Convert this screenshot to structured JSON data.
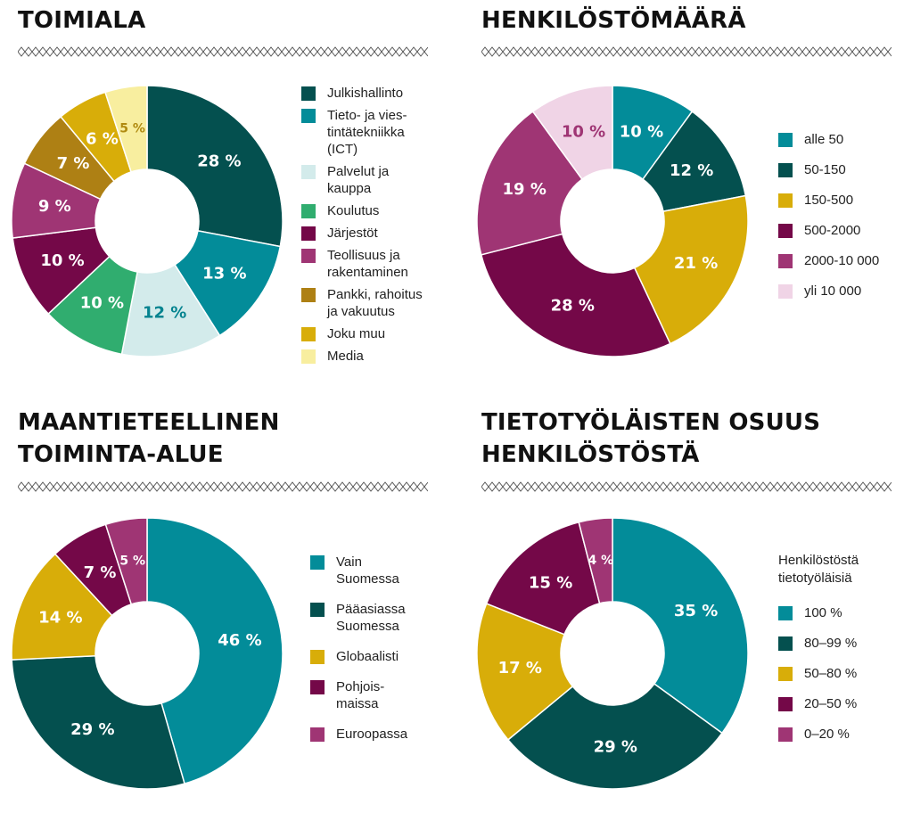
{
  "chart_data": [
    {
      "id": "toimiala",
      "type": "pie",
      "title": "TOIMIALA",
      "categories": [
        "Julkishallinto",
        "Tieto- ja vies-\ntintätekniikka\n(ICT)",
        "Palvelut ja\nkauppa",
        "Koulutus",
        "Järjestöt",
        "Teollisuus ja\nrakentaminen",
        "Pankki, rahoitus\nja vakuutus",
        "Joku muu",
        "Media"
      ],
      "values": [
        28,
        13,
        12,
        10,
        10,
        9,
        7,
        6,
        5
      ],
      "labels": [
        "28 %",
        "13 %",
        "12 %",
        "10 %",
        "10 %",
        "9 %",
        "7 %",
        "6 %",
        "5 %"
      ],
      "colors": [
        "#04504f",
        "#038c99",
        "#d3ebeb",
        "#30ad6f",
        "#740848",
        "#9f3574",
        "#ae8014",
        "#d8ad09",
        "#f8ee9f"
      ],
      "label_colors": [
        "#ffffff",
        "#ffffff",
        "#04838f",
        "#ffffff",
        "#ffffff",
        "#ffffff",
        "#ffffff",
        "#ffffff",
        "#b08a10"
      ],
      "legend_position": "right"
    },
    {
      "id": "henkilosto",
      "type": "pie",
      "title": "HENKILÖSTÖMÄÄRÄ",
      "categories": [
        "alle 50",
        "50-150",
        "150-500",
        "500-2000",
        "2000-10 000",
        "yli 10 000"
      ],
      "values": [
        10,
        12,
        21,
        28,
        19,
        10
      ],
      "labels": [
        "10 %",
        "12 %",
        "21 %",
        "28 %",
        "19 %",
        "10 %"
      ],
      "colors": [
        "#038c99",
        "#04504f",
        "#d8ad09",
        "#740848",
        "#9f3574",
        "#f0d4e6"
      ],
      "label_colors": [
        "#ffffff",
        "#ffffff",
        "#ffffff",
        "#ffffff",
        "#ffffff",
        "#9f3574"
      ],
      "legend_position": "right"
    },
    {
      "id": "alue",
      "type": "pie",
      "title": "MAANTIETEELLINEN\nTOIMINTA-ALUE",
      "categories": [
        "Vain\nSuomessa",
        "Pääasiassa\nSuomessa",
        "Globaalisti",
        "Pohjois-\nmaissa",
        "Euroopassa"
      ],
      "values": [
        46,
        29,
        14,
        7,
        5
      ],
      "labels": [
        "46 %",
        "29 %",
        "14 %",
        "7 %",
        "5 %"
      ],
      "colors": [
        "#038c99",
        "#04504f",
        "#d8ad09",
        "#740848",
        "#9f3574"
      ],
      "label_colors": [
        "#ffffff",
        "#ffffff",
        "#ffffff",
        "#ffffff",
        "#ffffff"
      ],
      "legend_position": "right"
    },
    {
      "id": "tietotyo",
      "type": "pie",
      "title": "TIETOTYÖLÄISTEN OSUUS\nHENKILÖSTÖSTÄ",
      "legend_title": "Henkilöstöstä\ntietotyöläisiä",
      "categories": [
        "100 %",
        "80–99 %",
        "50–80 %",
        "20–50 %",
        "0–20 %"
      ],
      "values": [
        35,
        29,
        17,
        15,
        4
      ],
      "labels": [
        "35 %",
        "29 %",
        "17 %",
        "15 %",
        "4 %"
      ],
      "colors": [
        "#038c99",
        "#04504f",
        "#d8ad09",
        "#740848",
        "#9f3574"
      ],
      "label_colors": [
        "#ffffff",
        "#ffffff",
        "#ffffff",
        "#ffffff",
        "#ffffff"
      ],
      "legend_position": "right"
    }
  ]
}
